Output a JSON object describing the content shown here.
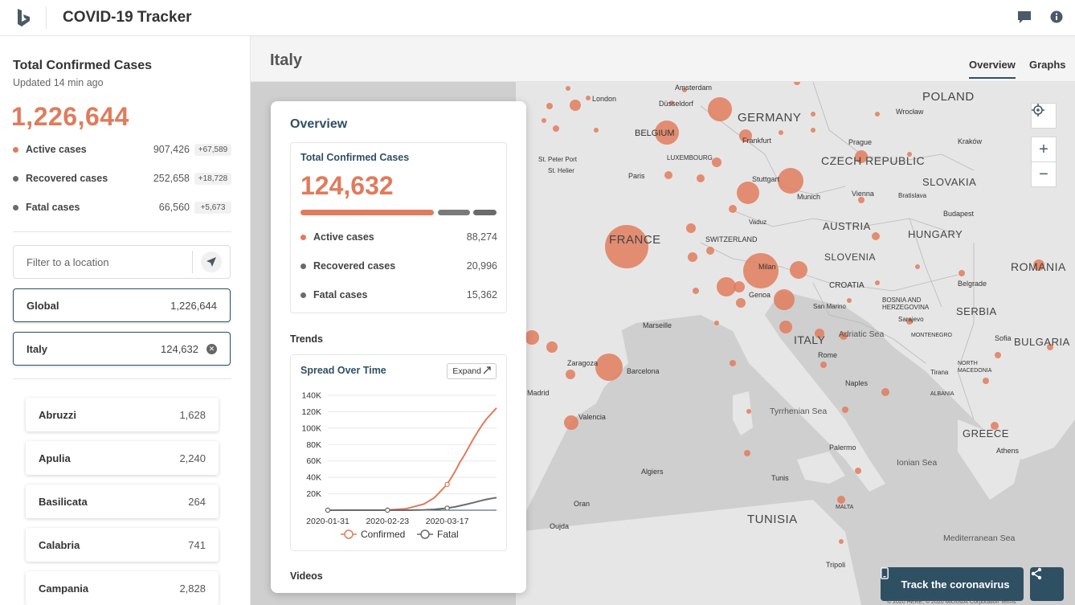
{
  "header": {
    "title": "COVID-19 Tracker",
    "logo": "bing-logo",
    "icons": [
      "feedback-icon",
      "info-icon"
    ]
  },
  "global_stats": {
    "title": "Total Confirmed Cases",
    "updated": "Updated 14 min ago",
    "total": "1,226,644",
    "rows": [
      {
        "label": "Active cases",
        "value": "907,426",
        "delta": "+67,589",
        "color": "#e07b5c"
      },
      {
        "label": "Recovered cases",
        "value": "252,658",
        "delta": "+18,728",
        "color": "#6b6b6b"
      },
      {
        "label": "Fatal cases",
        "value": "66,560",
        "delta": "+5,673",
        "color": "#6b6b6b"
      }
    ]
  },
  "filter": {
    "placeholder": "Filter to a location"
  },
  "locations": [
    {
      "name": "Global",
      "value": "1,226,644"
    },
    {
      "name": "Italy",
      "value": "124,632"
    }
  ],
  "regions": [
    {
      "name": "Abruzzi",
      "value": "1,628"
    },
    {
      "name": "Apulia",
      "value": "2,240"
    },
    {
      "name": "Basilicata",
      "value": "264"
    },
    {
      "name": "Calabria",
      "value": "741"
    },
    {
      "name": "Campania",
      "value": "2,828"
    }
  ],
  "main": {
    "country": "Italy",
    "tabs": [
      "Overview",
      "Graphs"
    ]
  },
  "overview": {
    "title": "Overview",
    "card_title": "Total Confirmed Cases",
    "total": "124,632",
    "rows": [
      {
        "label": "Active cases",
        "value": "88,274",
        "color": "#e07b5c"
      },
      {
        "label": "Recovered cases",
        "value": "20,996",
        "color": "#6b6b6b"
      },
      {
        "label": "Fatal cases",
        "value": "15,362",
        "color": "#6b6b6b"
      }
    ],
    "trends_label": "Trends",
    "videos_label": "Videos"
  },
  "map": {
    "labels": [
      "POLAND",
      "GERMANY",
      "CZECH REPUBLIC",
      "SLOVAKIA",
      "AUSTRIA",
      "HUNGARY",
      "FRANCE",
      "SLOVENIA",
      "CROATIA",
      "ROMANIA",
      "SERBIA",
      "BULGARIA",
      "ITALY",
      "GREECE",
      "TUNISIA",
      "Amsterdam",
      "London",
      "Düsseldorf",
      "BELGIUM",
      "LUXEMBOURG",
      "Frankfurt",
      "Prague",
      "Wrocław",
      "Kraków",
      "Stuttgart",
      "Munich",
      "Vienna",
      "Bratislava",
      "Budapest",
      "Vaduz",
      "SWITZERLAND",
      "Genoa",
      "Milan",
      "Belgrade",
      "San Marino",
      "BOSNIA AND HERZEGOVINA",
      "Sarajevo",
      "MONTENEGRO",
      "Tirana",
      "NORTH MACEDONIA",
      "ALBANIA",
      "Sofia",
      "Marseille",
      "Barcelona",
      "Zaragoza",
      "Valencia",
      "Madrid",
      "Paris",
      "St. Peter Port",
      "St. Helier",
      "Adriatic Sea",
      "Tyrrhenian Sea",
      "Ionian Sea",
      "Mediterranean Sea",
      "Rome",
      "Naples",
      "Palermo",
      "Algiers",
      "Tunis",
      "Oran",
      "Oujda",
      "Tripoli",
      "MALTA",
      "Athens"
    ],
    "track_button": "Track the coronavirus",
    "copyright": "© 2020 HERE, © 2020 Microsoft Corporation Terms"
  },
  "chart_data": {
    "type": "line",
    "title": "Spread Over Time",
    "expand_label": "Expand",
    "x_ticks": [
      "2020-01-31",
      "2020-02-23",
      "2020-03-17"
    ],
    "y_ticks": [
      "20K",
      "40K",
      "60K",
      "80K",
      "100K",
      "120K",
      "140K"
    ],
    "ylim": [
      0,
      140000
    ],
    "series": [
      {
        "name": "Confirmed",
        "color": "#e07b5c",
        "points": [
          [
            "2020-01-31",
            0
          ],
          [
            "2020-02-23",
            150
          ],
          [
            "2020-03-01",
            1700
          ],
          [
            "2020-03-08",
            7400
          ],
          [
            "2020-03-12",
            15100
          ],
          [
            "2020-03-17",
            31500
          ],
          [
            "2020-03-20",
            47000
          ],
          [
            "2020-03-22",
            59100
          ],
          [
            "2020-03-23",
            63900
          ],
          [
            "2020-03-24",
            69200
          ],
          [
            "2020-03-27",
            86500
          ],
          [
            "2020-03-30",
            101700
          ],
          [
            "2020-04-01",
            110600
          ],
          [
            "2020-04-05",
            124600
          ]
        ]
      },
      {
        "name": "Fatal",
        "color": "#6b6b6b",
        "points": [
          [
            "2020-01-31",
            0
          ],
          [
            "2020-02-23",
            3
          ],
          [
            "2020-03-01",
            34
          ],
          [
            "2020-03-08",
            366
          ],
          [
            "2020-03-12",
            1016
          ],
          [
            "2020-03-17",
            2503
          ],
          [
            "2020-03-20",
            4032
          ],
          [
            "2020-03-24",
            6820
          ],
          [
            "2020-03-27",
            9134
          ],
          [
            "2020-03-30",
            11591
          ],
          [
            "2020-04-01",
            13155
          ],
          [
            "2020-04-05",
            15362
          ]
        ]
      }
    ]
  }
}
